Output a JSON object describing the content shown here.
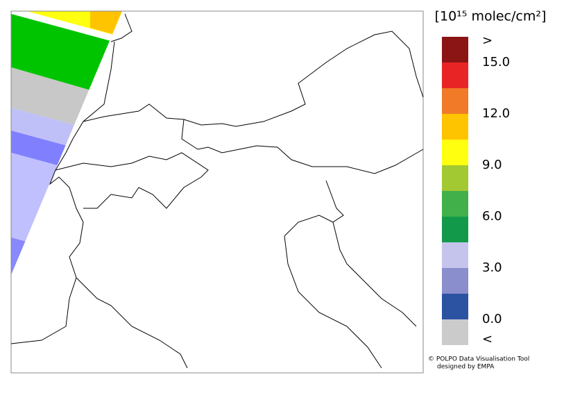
{
  "legend": {
    "unit": "[10¹⁵ molec/cm²]",
    "colors": [
      "#8b1414",
      "#e82424",
      "#f07a28",
      "#ffc400",
      "#ffff10",
      "#a2c832",
      "#42b04a",
      "#129a4a",
      "#c4c4ec",
      "#8a8ecc",
      "#2c52a2",
      "#cbcbcb"
    ],
    "above": ">",
    "below": "<",
    "ticks": [
      {
        "value": 15,
        "label": "15.0"
      },
      {
        "value": 12,
        "label": "12.0"
      },
      {
        "value": 9,
        "label": "9.0"
      },
      {
        "value": 6,
        "label": "6.0"
      },
      {
        "value": 3,
        "label": "3.0"
      },
      {
        "value": 0,
        "label": "0.0"
      }
    ]
  },
  "credits": [
    "© POLPO Data Visualisation Tool",
    "designed by EMPA"
  ]
}
